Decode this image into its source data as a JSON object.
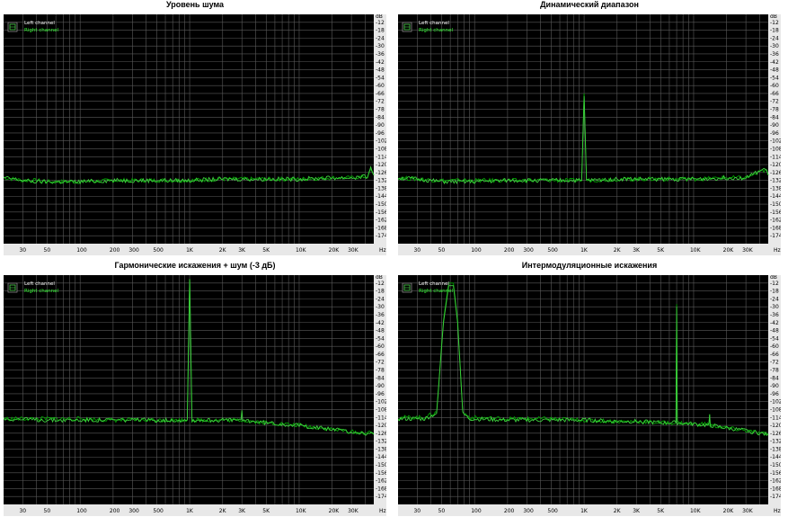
{
  "colors": {
    "background": "#000000",
    "grid": "#5a5a5a",
    "left_channel": "#00a000",
    "right_channel": "#3ed13e",
    "legend_right": "#33ff33",
    "axis_panel": "#e8e8e8"
  },
  "legend": {
    "left": "Left channel",
    "right": "Right channel",
    "icon": "legend-icon"
  },
  "chart_data": [
    {
      "type": "line",
      "title": "Уровень шума",
      "xscale": "log",
      "xlim": [
        20,
        48000
      ],
      "ylim": [
        -180,
        -6
      ],
      "y_unit": "dB",
      "x_unit": "Hz",
      "xticks": [
        "30",
        "50",
        "100",
        "200",
        "300",
        "500",
        "1K",
        "2K",
        "3K",
        "5K",
        "10K",
        "20K",
        "30K",
        "Hz"
      ],
      "yticks": [
        "dB",
        "-12",
        "-18",
        "-24",
        "-30",
        "-36",
        "-42",
        "-48",
        "-54",
        "-60",
        "-66",
        "-72",
        "-78",
        "-84",
        "-90",
        "-96",
        "-102",
        "-108",
        "-114",
        "-120",
        "-126",
        "-132",
        "-138",
        "-144",
        "-150",
        "-156",
        "-162",
        "-168",
        "-174"
      ],
      "grid": true,
      "legend_position": "top-left",
      "series": [
        {
          "name": "Left channel",
          "points": [
            [
              20,
              -130
            ],
            [
              25,
              -131
            ],
            [
              30,
              -132
            ],
            [
              40,
              -132
            ],
            [
              50,
              -133
            ],
            [
              70,
              -133
            ],
            [
              100,
              -133
            ],
            [
              200,
              -132
            ],
            [
              500,
              -132
            ],
            [
              1000,
              -132
            ],
            [
              2000,
              -131
            ],
            [
              5000,
              -131
            ],
            [
              10000,
              -131
            ],
            [
              20000,
              -130
            ],
            [
              30000,
              -130
            ],
            [
              42000,
              -129
            ],
            [
              45000,
              -124
            ],
            [
              48000,
              -128
            ]
          ]
        },
        {
          "name": "Right channel",
          "points": [
            [
              20,
              -130
            ],
            [
              25,
              -131
            ],
            [
              30,
              -132
            ],
            [
              40,
              -133
            ],
            [
              50,
              -133
            ],
            [
              70,
              -133
            ],
            [
              100,
              -133
            ],
            [
              200,
              -132
            ],
            [
              500,
              -132
            ],
            [
              1000,
              -132
            ],
            [
              2000,
              -131
            ],
            [
              5000,
              -131
            ],
            [
              10000,
              -131
            ],
            [
              20000,
              -130
            ],
            [
              30000,
              -130
            ],
            [
              42000,
              -129
            ],
            [
              45000,
              -123
            ],
            [
              48000,
              -128
            ]
          ]
        }
      ]
    },
    {
      "type": "line",
      "title": "Динамический диапазон",
      "xscale": "log",
      "xlim": [
        20,
        48000
      ],
      "ylim": [
        -180,
        -6
      ],
      "y_unit": "dB",
      "x_unit": "Hz",
      "xticks": [
        "30",
        "50",
        "100",
        "200",
        "300",
        "500",
        "1K",
        "2K",
        "3K",
        "5K",
        "10K",
        "20K",
        "30K",
        "Hz"
      ],
      "yticks": [
        "dB",
        "-12",
        "-18",
        "-24",
        "-30",
        "-36",
        "-42",
        "-48",
        "-54",
        "-60",
        "-66",
        "-72",
        "-78",
        "-84",
        "-90",
        "-96",
        "-102",
        "-108",
        "-114",
        "-120",
        "-126",
        "-132",
        "-138",
        "-144",
        "-150",
        "-156",
        "-162",
        "-168",
        "-174"
      ],
      "grid": true,
      "legend_position": "top-left",
      "series": [
        {
          "name": "Left channel",
          "points": [
            [
              20,
              -130
            ],
            [
              30,
              -131
            ],
            [
              50,
              -132
            ],
            [
              100,
              -132
            ],
            [
              200,
              -132
            ],
            [
              500,
              -132
            ],
            [
              950,
              -132
            ],
            [
              1000,
              -66
            ],
            [
              1050,
              -132
            ],
            [
              2000,
              -131
            ],
            [
              5000,
              -131
            ],
            [
              10000,
              -131
            ],
            [
              20000,
              -130
            ],
            [
              30000,
              -130
            ],
            [
              45000,
              -124
            ],
            [
              48000,
              -128
            ]
          ]
        },
        {
          "name": "Right channel",
          "points": [
            [
              20,
              -130
            ],
            [
              30,
              -131
            ],
            [
              50,
              -133
            ],
            [
              100,
              -133
            ],
            [
              200,
              -132
            ],
            [
              500,
              -132
            ],
            [
              950,
              -132
            ],
            [
              1000,
              -68
            ],
            [
              1050,
              -132
            ],
            [
              2000,
              -131
            ],
            [
              5000,
              -131
            ],
            [
              10000,
              -131
            ],
            [
              20000,
              -130
            ],
            [
              30000,
              -130
            ],
            [
              45000,
              -123
            ],
            [
              48000,
              -128
            ]
          ]
        }
      ]
    },
    {
      "type": "line",
      "title": "Гармонические искажения + шум (-3 дБ)",
      "xscale": "log",
      "xlim": [
        20,
        48000
      ],
      "ylim": [
        -180,
        -6
      ],
      "y_unit": "dB",
      "x_unit": "Hz",
      "xticks": [
        "30",
        "50",
        "100",
        "200",
        "300",
        "500",
        "1K",
        "2K",
        "3K",
        "5K",
        "10K",
        "20K",
        "30K",
        "Hz"
      ],
      "yticks": [
        "dB",
        "-12",
        "-18",
        "-24",
        "-30",
        "-36",
        "-42",
        "-48",
        "-54",
        "-60",
        "-66",
        "-72",
        "-78",
        "-84",
        "-90",
        "-96",
        "-102",
        "-108",
        "-114",
        "-120",
        "-126",
        "-132",
        "-138",
        "-144",
        "-150",
        "-156",
        "-162",
        "-168",
        "-174"
      ],
      "grid": true,
      "legend_position": "top-left",
      "series": [
        {
          "name": "Left channel",
          "points": [
            [
              20,
              -115
            ],
            [
              50,
              -115
            ],
            [
              100,
              -115
            ],
            [
              200,
              -116
            ],
            [
              500,
              -116
            ],
            [
              950,
              -116
            ],
            [
              1000,
              -9
            ],
            [
              1050,
              -116
            ],
            [
              2000,
              -116
            ],
            [
              3000,
              -116
            ],
            [
              5000,
              -118
            ],
            [
              10000,
              -120
            ],
            [
              20000,
              -123
            ],
            [
              30000,
              -125
            ],
            [
              48000,
              -126
            ]
          ]
        },
        {
          "name": "Right channel",
          "points": [
            [
              20,
              -115
            ],
            [
              50,
              -116
            ],
            [
              100,
              -116
            ],
            [
              200,
              -116
            ],
            [
              500,
              -116
            ],
            [
              950,
              -116
            ],
            [
              1000,
              -9
            ],
            [
              1050,
              -116
            ],
            [
              2000,
              -116
            ],
            [
              2950,
              -116
            ],
            [
              3000,
              -110
            ],
            [
              3050,
              -116
            ],
            [
              5000,
              -118
            ],
            [
              10000,
              -120
            ],
            [
              20000,
              -123
            ],
            [
              30000,
              -125
            ],
            [
              48000,
              -127
            ]
          ]
        }
      ]
    },
    {
      "type": "line",
      "title": "Интермодуляционные искажения",
      "xscale": "log",
      "xlim": [
        20,
        48000
      ],
      "ylim": [
        -180,
        -6
      ],
      "y_unit": "dB",
      "x_unit": "Hz",
      "xticks": [
        "30",
        "50",
        "100",
        "200",
        "300",
        "500",
        "1K",
        "2K",
        "3K",
        "5K",
        "10K",
        "20K",
        "30K",
        "Hz"
      ],
      "yticks": [
        "dB",
        "-12",
        "-18",
        "-24",
        "-30",
        "-36",
        "-42",
        "-48",
        "-54",
        "-60",
        "-66",
        "-72",
        "-78",
        "-84",
        "-90",
        "-96",
        "-102",
        "-108",
        "-114",
        "-120",
        "-126",
        "-132",
        "-138",
        "-144",
        "-150",
        "-156",
        "-162",
        "-168",
        "-174"
      ],
      "grid": true,
      "legend_position": "top-left",
      "series": [
        {
          "name": "Left channel",
          "points": [
            [
              20,
              -114
            ],
            [
              35,
              -114
            ],
            [
              45,
              -110
            ],
            [
              52,
              -40
            ],
            [
              58,
              -12
            ],
            [
              64,
              -12
            ],
            [
              70,
              -40
            ],
            [
              78,
              -110
            ],
            [
              90,
              -114
            ],
            [
              200,
              -115
            ],
            [
              500,
              -115
            ],
            [
              1000,
              -116
            ],
            [
              2000,
              -117
            ],
            [
              3000,
              -117
            ],
            [
              5000,
              -118
            ],
            [
              6900,
              -118
            ],
            [
              7000,
              -28
            ],
            [
              7100,
              -118
            ],
            [
              10000,
              -119
            ],
            [
              13800,
              -119
            ],
            [
              14000,
              -112
            ],
            [
              14200,
              -120
            ],
            [
              20000,
              -122
            ],
            [
              30000,
              -124
            ],
            [
              48000,
              -127
            ]
          ]
        },
        {
          "name": "Right channel",
          "points": [
            [
              20,
              -115
            ],
            [
              35,
              -115
            ],
            [
              45,
              -111
            ],
            [
              52,
              -42
            ],
            [
              58,
              -14
            ],
            [
              64,
              -14
            ],
            [
              70,
              -42
            ],
            [
              78,
              -111
            ],
            [
              90,
              -115
            ],
            [
              200,
              -116
            ],
            [
              500,
              -116
            ],
            [
              1000,
              -116
            ],
            [
              2000,
              -117
            ],
            [
              3000,
              -117
            ],
            [
              5000,
              -118
            ],
            [
              6900,
              -118
            ],
            [
              7000,
              -30
            ],
            [
              7100,
              -118
            ],
            [
              10000,
              -119
            ],
            [
              13800,
              -120
            ],
            [
              14000,
              -113
            ],
            [
              14200,
              -120
            ],
            [
              20000,
              -122
            ],
            [
              30000,
              -124
            ],
            [
              48000,
              -127
            ]
          ]
        }
      ]
    }
  ]
}
